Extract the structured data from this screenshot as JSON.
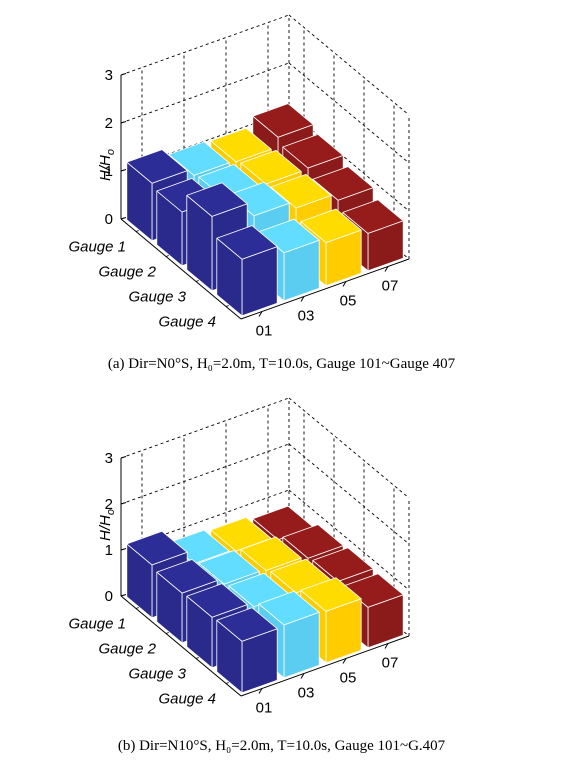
{
  "chart_data": [
    {
      "type": "bar3d",
      "caption": "(a) Dir=N0°S, H₀=2.0m, T=10.0s, Gauge 101~Gauge 407",
      "ylabel_main": "H/H",
      "ylabel_sub": "o",
      "zlim": [
        0,
        3
      ],
      "z_ticks": [
        "0",
        "1",
        "2",
        "3"
      ],
      "rows": [
        "Gauge 1",
        "Gauge 2",
        "Gauge 3",
        "Gauge 4"
      ],
      "col_ticks": [
        "01",
        "03",
        "05",
        "07"
      ],
      "colors": [
        "#2a2a8c",
        "#5bcdf0",
        "#ffcc00",
        "#8b1a1a"
      ],
      "grid": true,
      "values": [
        [
          1.2,
          1.05,
          1.02,
          1.22
        ],
        [
          1.12,
          1.1,
          1.08,
          1.1
        ],
        [
          1.55,
          1.25,
          1.1,
          0.95
        ],
        [
          1.18,
          1.0,
          0.9,
          0.78
        ]
      ]
    },
    {
      "type": "bar3d",
      "caption": "(b) Dir=N10°S, H₀=2.0m, T=10.0s, Gauge 101~G.407",
      "ylabel_main": "H/H",
      "ylabel_sub": "o",
      "zlim": [
        0,
        3
      ],
      "z_ticks": [
        "0",
        "1",
        "2",
        "3"
      ],
      "rows": [
        "Gauge 1",
        "Gauge 2",
        "Gauge 3",
        "Gauge 4"
      ],
      "col_ticks": [
        "01",
        "03",
        "05",
        "07"
      ],
      "colors": [
        "#2a2a8c",
        "#5bcdf0",
        "#ffcc00",
        "#8b1a1a"
      ],
      "grid": true,
      "values": [
        [
          1.15,
          0.85,
          0.8,
          0.72
        ],
        [
          1.08,
          0.95,
          0.92,
          0.86
        ],
        [
          1.1,
          1.0,
          0.98,
          0.9
        ],
        [
          1.12,
          1.15,
          1.12,
          0.88
        ]
      ]
    }
  ]
}
